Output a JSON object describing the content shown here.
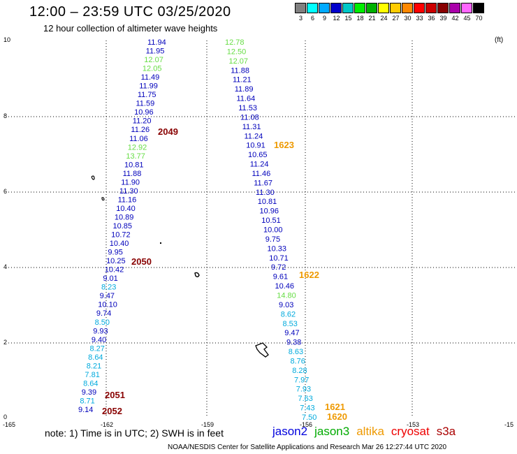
{
  "title": "12:00  –  23:59 UTC 03/25/2020",
  "subtitle": "12 hour collection of altimeter wave heights",
  "colorbar": {
    "labels": [
      "3",
      "6",
      "9",
      "12",
      "15",
      "18",
      "21",
      "24",
      "27",
      "30",
      "33",
      "36",
      "39",
      "42",
      "45",
      "70"
    ],
    "colors": [
      "#808080",
      "#00ffff",
      "#00aaff",
      "#0000cc",
      "#00c8c8",
      "#00ee00",
      "#00b000",
      "#ffff00",
      "#ffcc00",
      "#ff8800",
      "#ff0000",
      "#cc0000",
      "#880000",
      "#aa00aa",
      "#ff66ff",
      "#000000"
    ],
    "unit": "(ft)"
  },
  "axes": {
    "x_ticks": [
      "-165",
      "-162",
      "-159",
      "-156",
      "-153",
      "-15"
    ],
    "y_ticks": [
      "0",
      "2",
      "4",
      "6",
      "8",
      "10"
    ]
  },
  "colors": {
    "jason2": "#0000bb",
    "jason2_light": "#00aadd",
    "jason3": "#66dd44",
    "altika": "#ee9900",
    "time": "#880000"
  },
  "track_a": [
    {
      "v": "11.94",
      "c": "jason2"
    },
    {
      "v": "11.95",
      "c": "jason2"
    },
    {
      "v": "12.07",
      "c": "jason3"
    },
    {
      "v": "12.05",
      "c": "jason3"
    },
    {
      "v": "11.49",
      "c": "jason2"
    },
    {
      "v": "11.99",
      "c": "jason2"
    },
    {
      "v": "11.75",
      "c": "jason2"
    },
    {
      "v": "11.59",
      "c": "jason2"
    },
    {
      "v": "10.96",
      "c": "jason2"
    },
    {
      "v": "11.20",
      "c": "jason2"
    },
    {
      "v": "11.26",
      "c": "jason2"
    },
    {
      "v": "11.06",
      "c": "jason2"
    },
    {
      "v": "12.92",
      "c": "jason3"
    },
    {
      "v": "13.77",
      "c": "jason3"
    },
    {
      "v": "10.81",
      "c": "jason2"
    },
    {
      "v": "11.88",
      "c": "jason2"
    },
    {
      "v": "11.90",
      "c": "jason2"
    },
    {
      "v": "11.30",
      "c": "jason2"
    },
    {
      "v": "11.16",
      "c": "jason2"
    },
    {
      "v": "10.40",
      "c": "jason2"
    },
    {
      "v": "10.89",
      "c": "jason2"
    },
    {
      "v": "10.85",
      "c": "jason2"
    },
    {
      "v": "10.72",
      "c": "jason2"
    },
    {
      "v": "10.40",
      "c": "jason2"
    },
    {
      "v": "9.95",
      "c": "jason2"
    },
    {
      "v": "10.25",
      "c": "jason2"
    },
    {
      "v": "10.42",
      "c": "jason2"
    },
    {
      "v": "9.01",
      "c": "jason2"
    },
    {
      "v": "8.23",
      "c": "jason2_light"
    },
    {
      "v": "9.47",
      "c": "jason2"
    },
    {
      "v": "10.10",
      "c": "jason2"
    },
    {
      "v": "9.74",
      "c": "jason2"
    },
    {
      "v": "8.50",
      "c": "jason2_light"
    },
    {
      "v": "9.93",
      "c": "jason2"
    },
    {
      "v": "9.40",
      "c": "jason2"
    },
    {
      "v": "8.27",
      "c": "jason2_light"
    },
    {
      "v": "8.64",
      "c": "jason2_light"
    },
    {
      "v": "8.21",
      "c": "jason2_light"
    },
    {
      "v": "7.81",
      "c": "jason2_light"
    },
    {
      "v": "8.64",
      "c": "jason2_light"
    },
    {
      "v": "9.39",
      "c": "jason2"
    },
    {
      "v": "8.71",
      "c": "jason2_light"
    },
    {
      "v": "9.14",
      "c": "jason2"
    }
  ],
  "track_b": [
    {
      "v": "12.78",
      "c": "jason3"
    },
    {
      "v": "12.50",
      "c": "jason3"
    },
    {
      "v": "12.07",
      "c": "jason3"
    },
    {
      "v": "11.88",
      "c": "jason2"
    },
    {
      "v": "11.21",
      "c": "jason2"
    },
    {
      "v": "11.89",
      "c": "jason2"
    },
    {
      "v": "11.64",
      "c": "jason2"
    },
    {
      "v": "11.53",
      "c": "jason2"
    },
    {
      "v": "11.08",
      "c": "jason2"
    },
    {
      "v": "11.31",
      "c": "jason2"
    },
    {
      "v": "11.24",
      "c": "jason2"
    },
    {
      "v": "10.91",
      "c": "jason2"
    },
    {
      "v": "10.65",
      "c": "jason2"
    },
    {
      "v": "11.24",
      "c": "jason2"
    },
    {
      "v": "11.46",
      "c": "jason2"
    },
    {
      "v": "11.67",
      "c": "jason2"
    },
    {
      "v": "11.30",
      "c": "jason2"
    },
    {
      "v": "10.81",
      "c": "jason2"
    },
    {
      "v": "10.96",
      "c": "jason2"
    },
    {
      "v": "10.51",
      "c": "jason2"
    },
    {
      "v": "10.00",
      "c": "jason2"
    },
    {
      "v": "9.75",
      "c": "jason2"
    },
    {
      "v": "10.33",
      "c": "jason2"
    },
    {
      "v": "10.71",
      "c": "jason2"
    },
    {
      "v": "9.72",
      "c": "jason2"
    },
    {
      "v": "9.61",
      "c": "jason2"
    },
    {
      "v": "10.46",
      "c": "jason2"
    },
    {
      "v": "14.80",
      "c": "jason3"
    },
    {
      "v": "9.03",
      "c": "jason2"
    },
    {
      "v": "8.62",
      "c": "jason2_light"
    },
    {
      "v": "8.53",
      "c": "jason2_light"
    },
    {
      "v": "9.47",
      "c": "jason2"
    },
    {
      "v": "9.38",
      "c": "jason2"
    },
    {
      "v": "8.63",
      "c": "jason2_light"
    },
    {
      "v": "8.76",
      "c": "jason2_light"
    },
    {
      "v": "8.28",
      "c": "jason2_light"
    },
    {
      "v": "7.97",
      "c": "jason2_light"
    },
    {
      "v": "7.93",
      "c": "jason2_light"
    },
    {
      "v": "7.63",
      "c": "jason2_light"
    },
    {
      "v": "7.43",
      "c": "jason2_light"
    },
    {
      "v": "7.50",
      "c": "jason2_light"
    }
  ],
  "times": [
    {
      "v": "2049",
      "c": "time"
    },
    {
      "v": "2050",
      "c": "time"
    },
    {
      "v": "2051",
      "c": "time"
    },
    {
      "v": "2052",
      "c": "time"
    },
    {
      "v": "1623",
      "c": "altika"
    },
    {
      "v": "1622",
      "c": "altika"
    },
    {
      "v": "1621",
      "c": "altika"
    },
    {
      "v": "1620",
      "c": "altika"
    }
  ],
  "note": "note:  1) Time is in UTC;  2) SWH is in feet",
  "legend": [
    {
      "name": "jason2",
      "color": "#0000dd"
    },
    {
      "name": "jason3",
      "color": "#00aa00"
    },
    {
      "name": "altika",
      "color": "#ee9900"
    },
    {
      "name": "cryosat",
      "color": "#ee0000"
    },
    {
      "name": "s3a",
      "color": "#aa0000"
    }
  ],
  "credit": "NOAA/NESDIS Center for Satellite Applications and Research    Mar 26 12:27:44 UTC 2020"
}
